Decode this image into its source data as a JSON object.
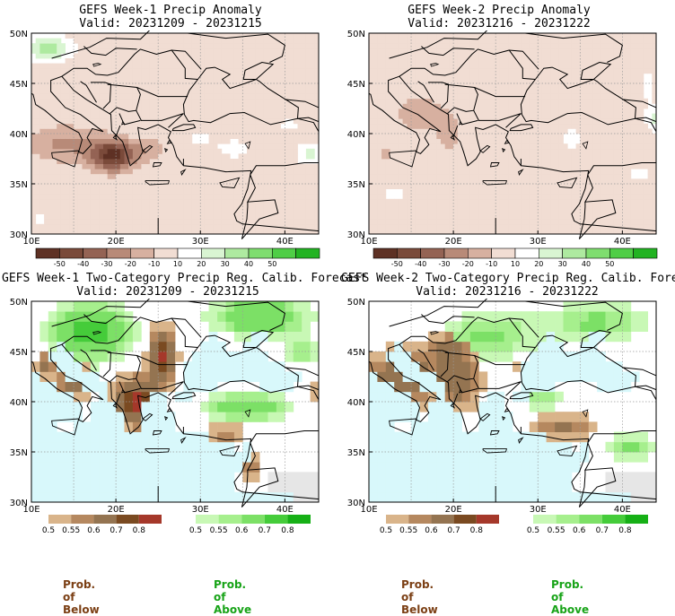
{
  "panels": [
    {
      "title": "GEFS Week-1 Precip Anomaly",
      "valid": "Valid: 20231209 - 20231215",
      "kind": "anomaly",
      "week": 1
    },
    {
      "title": "GEFS Week-2 Precip Anomaly",
      "valid": "Valid: 20231216 - 20231222",
      "kind": "anomaly",
      "week": 2
    },
    {
      "title": "GEFS Week-1 Two-Category Precip Reg. Calib. Forecast",
      "valid": "Valid: 20231209 - 20231215",
      "kind": "prob",
      "week": 1
    },
    {
      "title": "GEFS Week-2 Two-Category Precip Reg. Calib. Forecast",
      "valid": "Valid: 20231216 - 20231222",
      "kind": "prob",
      "week": 2
    }
  ],
  "axes": {
    "lat_labels": [
      "50N",
      "45N",
      "40N",
      "35N",
      "30N"
    ],
    "lon_labels": [
      "10E",
      "20E",
      "30E",
      "40E"
    ],
    "lon_range": [
      10,
      44
    ],
    "lat_range": [
      30,
      50
    ]
  },
  "anomaly_colorbar": {
    "labels": [
      "-50",
      "-40",
      "-30",
      "-20",
      "-10",
      "10",
      "20",
      "30",
      "40",
      "50"
    ],
    "colors": [
      "#5e3124",
      "#7a4a3a",
      "#946354",
      "#b88a78",
      "#d7b0a0",
      "#f1ddd3",
      "#ffffff",
      "#d9f5d2",
      "#aeeaa0",
      "#7fdd6f",
      "#4fce46",
      "#22b322"
    ]
  },
  "prob_below_colorbar": {
    "labels": [
      "0.5",
      "0.55",
      "0.6",
      "0.7",
      "0.8"
    ],
    "colors": [
      "#d9b48a",
      "#b5885f",
      "#947451",
      "#7a4a21",
      "#a5382a"
    ]
  },
  "prob_above_colorbar": {
    "labels": [
      "0.5",
      "0.55",
      "0.6",
      "0.7",
      "0.8"
    ],
    "colors": [
      "#c8f8b5",
      "#a6ef8d",
      "#7ce066",
      "#45cc3a",
      "#16b016"
    ]
  },
  "legend_captions": {
    "below": "Prob. of Below",
    "above": "Prob. of Above"
  },
  "colors": {
    "land_no_signal": "#ffffff",
    "sea_prob_map": "#d8f8fb",
    "no_data": "#e6e6e6",
    "below_caption": "#7b3f14",
    "above_caption": "#17a317"
  }
}
